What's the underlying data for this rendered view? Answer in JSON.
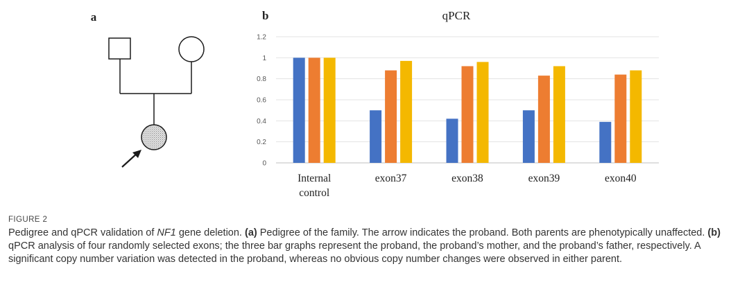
{
  "panel_a": {
    "label": "a"
  },
  "chart_data": {
    "type": "bar",
    "panel_label": "b",
    "title": "qPCR",
    "categories": [
      "Internal\ncontrol",
      "exon37",
      "exon38",
      "exon39",
      "exon40"
    ],
    "series": [
      {
        "color": "#4472C4",
        "values": [
          1.0,
          0.5,
          0.42,
          0.5,
          0.39
        ]
      },
      {
        "color": "#ED7D31",
        "values": [
          1.0,
          0.88,
          0.92,
          0.83,
          0.84
        ]
      },
      {
        "color": "#F4B800",
        "values": [
          1.0,
          0.97,
          0.96,
          0.92,
          0.88
        ]
      }
    ],
    "ylim": [
      0,
      1.2
    ],
    "yticks": [
      "0",
      "0.2",
      "0.4",
      "0.6",
      "0.8",
      "1",
      "1.2"
    ],
    "grid": true
  },
  "caption": {
    "figure_label": "FIGURE 2",
    "text_1": "Pedigree and qPCR validation of ",
    "gene": "NF1",
    "text_2": " gene deletion. ",
    "part_a": "(a)",
    "text_3": " Pedigree of the family. The arrow indicates the proband. Both parents are phenotypically unaffected. ",
    "part_b": "(b)",
    "text_4": " qPCR analysis of four randomly selected exons; the three bar graphs represent the proband, the proband’s mother, and the proband’s father, respectively. A significant copy number variation was detected in the proband, whereas no obvious copy number changes were observed in either parent."
  }
}
